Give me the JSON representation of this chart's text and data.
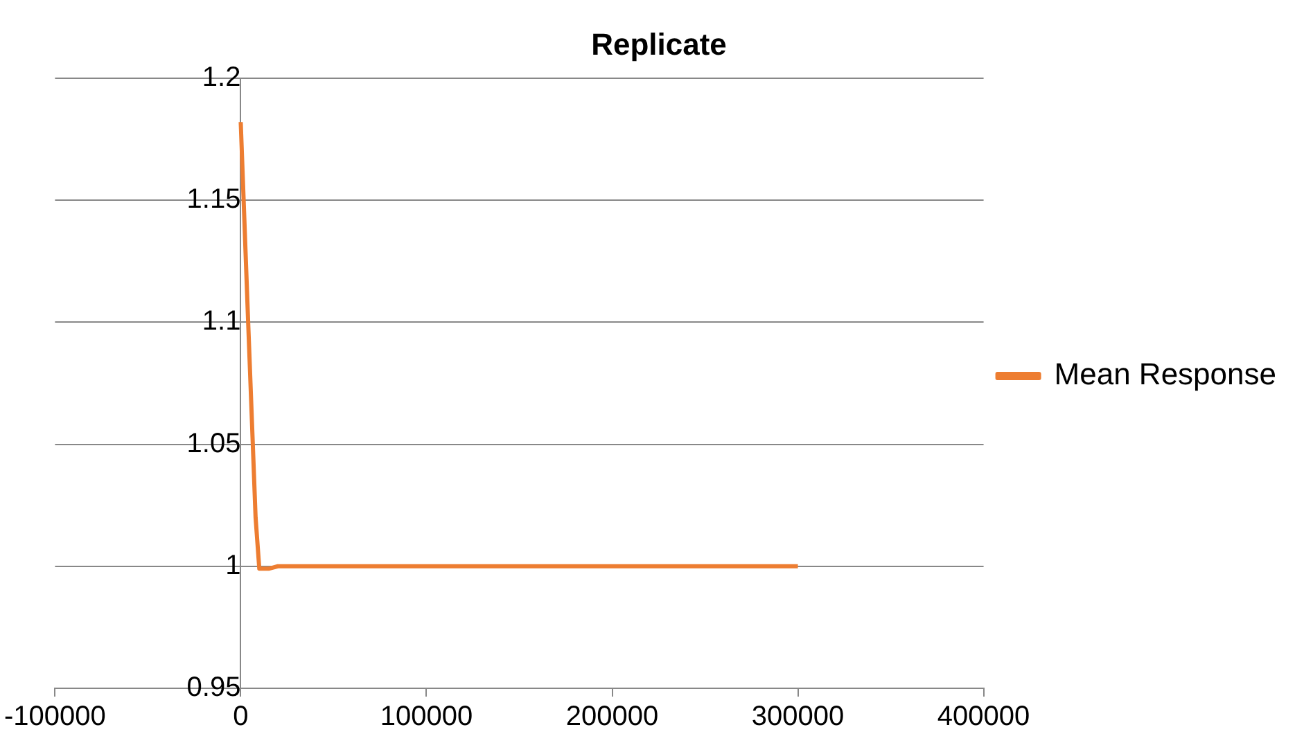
{
  "chart_data": {
    "type": "line",
    "title": "Replicate",
    "series": [
      {
        "name": "Mean Response",
        "color": "#ed7d31",
        "x": [
          0,
          4000,
          8000,
          10000,
          15000,
          20000,
          300000
        ],
        "values": [
          1.182,
          1.1,
          1.02,
          0.999,
          0.999,
          1.0,
          1.0
        ]
      }
    ],
    "xlim": [
      -100000,
      400000
    ],
    "xticks": [
      -100000,
      0,
      100000,
      200000,
      300000,
      400000
    ],
    "ylim": [
      0.95,
      1.2
    ],
    "yticks": [
      0.95,
      1,
      1.05,
      1.1,
      1.15,
      1.2
    ],
    "grid": "y",
    "legend": "right",
    "marker": "none",
    "line_style": "solid"
  }
}
